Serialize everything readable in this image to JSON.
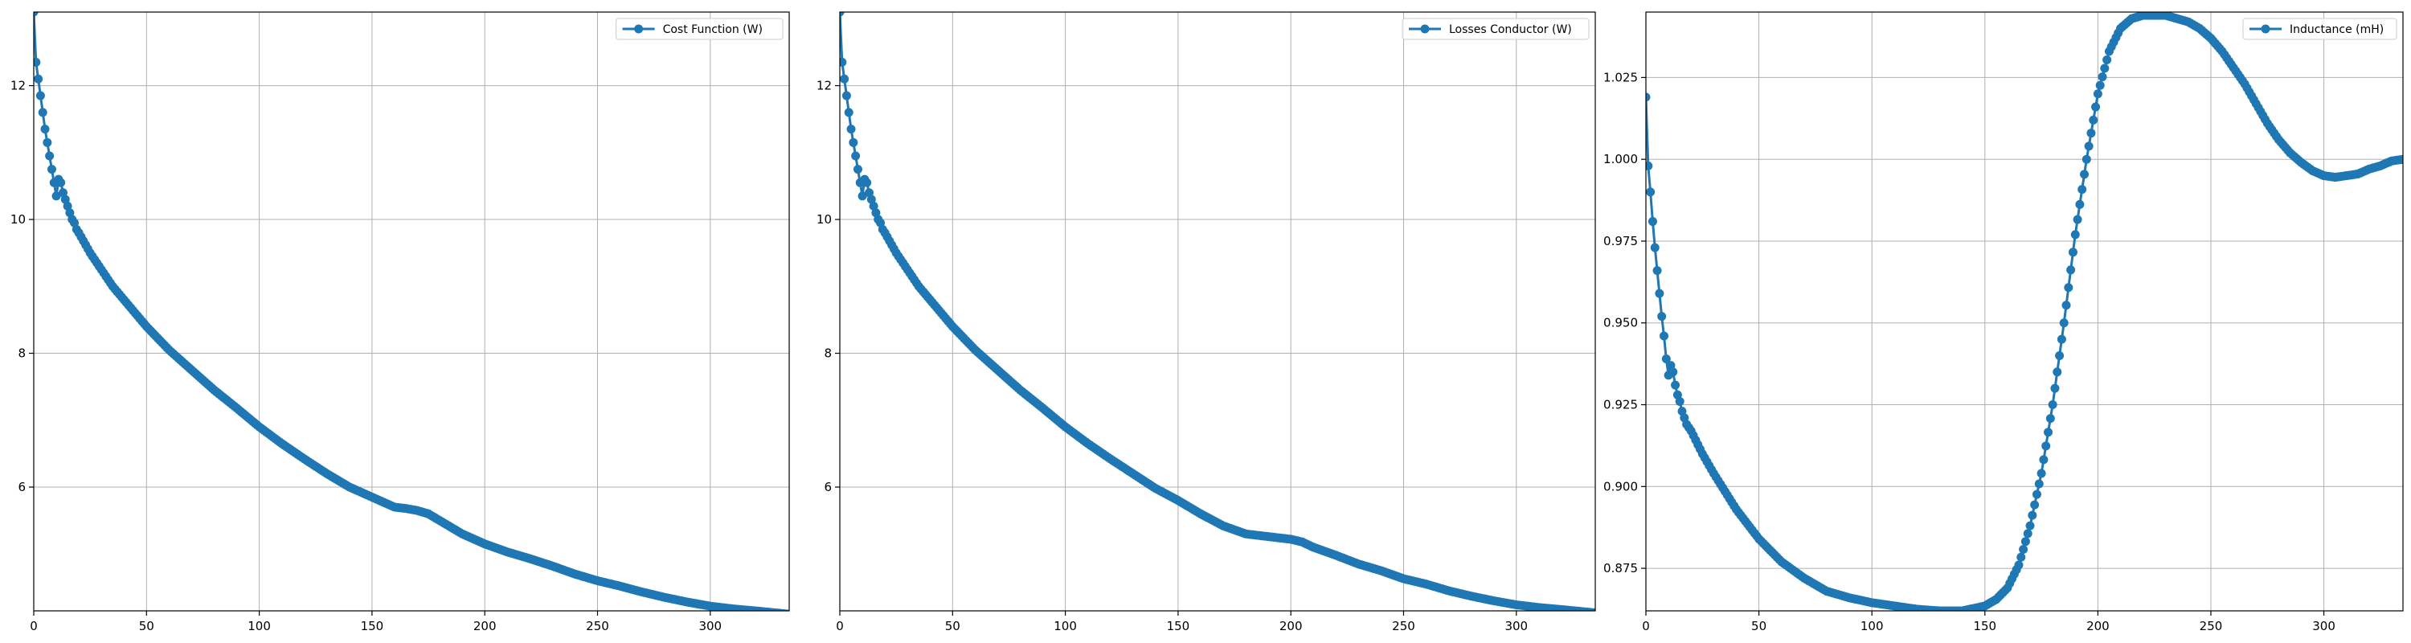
{
  "chart_data": [
    {
      "type": "line",
      "legend": "top-right",
      "grid": true,
      "marker": "circle",
      "xlim": [
        0,
        335
      ],
      "ylim": [
        4.15,
        13.1
      ],
      "x_ticks": [
        0,
        50,
        100,
        150,
        200,
        250,
        300
      ],
      "y_ticks": [
        6,
        8,
        10,
        12
      ],
      "y_tick_labels": [
        "6",
        "8",
        "10",
        "12"
      ],
      "series": [
        {
          "name": "Cost Function (W)",
          "color": "#1f77b4",
          "x": [
            0,
            1,
            2,
            3,
            4,
            5,
            6,
            7,
            8,
            9,
            10,
            11,
            12,
            13,
            14,
            15,
            16,
            17,
            18,
            19,
            20,
            25,
            30,
            35,
            40,
            45,
            50,
            60,
            70,
            80,
            90,
            100,
            110,
            120,
            130,
            140,
            150,
            160,
            165,
            170,
            175,
            180,
            190,
            200,
            210,
            220,
            230,
            240,
            250,
            260,
            270,
            280,
            290,
            300,
            310,
            320,
            335
          ],
          "y": [
            13.1,
            12.35,
            12.1,
            11.85,
            11.6,
            11.35,
            11.15,
            10.95,
            10.75,
            10.55,
            10.35,
            10.6,
            10.55,
            10.4,
            10.3,
            10.2,
            10.1,
            10.0,
            9.95,
            9.85,
            9.8,
            9.5,
            9.25,
            9.0,
            8.8,
            8.6,
            8.4,
            8.05,
            7.75,
            7.45,
            7.18,
            6.9,
            6.65,
            6.42,
            6.2,
            6.0,
            5.85,
            5.7,
            5.68,
            5.65,
            5.6,
            5.5,
            5.3,
            5.15,
            5.03,
            4.93,
            4.82,
            4.7,
            4.6,
            4.52,
            4.43,
            4.35,
            4.28,
            4.22,
            4.18,
            4.15,
            4.1
          ]
        }
      ]
    },
    {
      "type": "line",
      "legend": "top-right",
      "grid": true,
      "marker": "circle",
      "xlim": [
        0,
        335
      ],
      "ylim": [
        4.15,
        13.1
      ],
      "x_ticks": [
        0,
        50,
        100,
        150,
        200,
        250,
        300
      ],
      "y_ticks": [
        6,
        8,
        10,
        12
      ],
      "y_tick_labels": [
        "6",
        "8",
        "10",
        "12"
      ],
      "series": [
        {
          "name": "Losses Conductor (W)",
          "color": "#1f77b4",
          "x": [
            0,
            1,
            2,
            3,
            4,
            5,
            6,
            7,
            8,
            9,
            10,
            11,
            12,
            13,
            14,
            15,
            16,
            17,
            18,
            19,
            20,
            25,
            30,
            35,
            40,
            45,
            50,
            60,
            70,
            80,
            90,
            100,
            110,
            120,
            130,
            140,
            150,
            160,
            170,
            180,
            190,
            200,
            205,
            210,
            220,
            230,
            240,
            250,
            260,
            270,
            280,
            290,
            300,
            310,
            320,
            335
          ],
          "y": [
            13.1,
            12.35,
            12.1,
            11.85,
            11.6,
            11.35,
            11.15,
            10.95,
            10.75,
            10.55,
            10.35,
            10.6,
            10.55,
            10.4,
            10.3,
            10.2,
            10.1,
            10.0,
            9.95,
            9.85,
            9.8,
            9.5,
            9.25,
            9.0,
            8.8,
            8.6,
            8.4,
            8.05,
            7.75,
            7.45,
            7.18,
            6.9,
            6.65,
            6.42,
            6.2,
            5.98,
            5.8,
            5.6,
            5.42,
            5.3,
            5.26,
            5.22,
            5.18,
            5.1,
            4.98,
            4.85,
            4.75,
            4.63,
            4.55,
            4.45,
            4.37,
            4.3,
            4.24,
            4.2,
            4.17,
            4.12
          ]
        }
      ]
    },
    {
      "type": "line",
      "legend": "top-right",
      "grid": true,
      "marker": "circle",
      "xlim": [
        0,
        335
      ],
      "ylim": [
        0.862,
        1.045
      ],
      "x_ticks": [
        0,
        50,
        100,
        150,
        200,
        250,
        300
      ],
      "y_ticks": [
        0.875,
        0.9,
        0.925,
        0.95,
        0.975,
        1.0,
        1.025
      ],
      "y_tick_labels": [
        "0.875",
        "0.900",
        "0.925",
        "0.950",
        "0.975",
        "1.000",
        "1.025"
      ],
      "series": [
        {
          "name": "Inductance (mH)",
          "color": "#1f77b4",
          "x": [
            0,
            1,
            2,
            3,
            4,
            5,
            6,
            7,
            8,
            9,
            10,
            11,
            12,
            13,
            14,
            15,
            16,
            17,
            18,
            19,
            20,
            25,
            30,
            40,
            50,
            60,
            70,
            80,
            90,
            100,
            110,
            120,
            130,
            140,
            150,
            155,
            160,
            165,
            170,
            175,
            180,
            185,
            190,
            195,
            200,
            205,
            210,
            215,
            220,
            225,
            230,
            235,
            240,
            245,
            250,
            255,
            260,
            265,
            270,
            275,
            280,
            285,
            290,
            295,
            300,
            305,
            310,
            315,
            320,
            325,
            330,
            335
          ],
          "y": [
            1.019,
            0.998,
            0.99,
            0.981,
            0.973,
            0.966,
            0.959,
            0.952,
            0.946,
            0.939,
            0.934,
            0.937,
            0.935,
            0.931,
            0.928,
            0.926,
            0.923,
            0.921,
            0.919,
            0.918,
            0.917,
            0.91,
            0.904,
            0.893,
            0.884,
            0.877,
            0.872,
            0.868,
            0.866,
            0.8645,
            0.8635,
            0.8625,
            0.862,
            0.862,
            0.8635,
            0.8655,
            0.869,
            0.876,
            0.888,
            0.904,
            0.925,
            0.95,
            0.977,
            1.0,
            1.02,
            1.033,
            1.04,
            1.043,
            1.044,
            1.044,
            1.044,
            1.043,
            1.042,
            1.04,
            1.037,
            1.033,
            1.028,
            1.023,
            1.017,
            1.011,
            1.006,
            1.002,
            0.999,
            0.9965,
            0.995,
            0.9945,
            0.995,
            0.9955,
            0.997,
            0.998,
            0.9995,
            1.0
          ]
        }
      ]
    }
  ]
}
